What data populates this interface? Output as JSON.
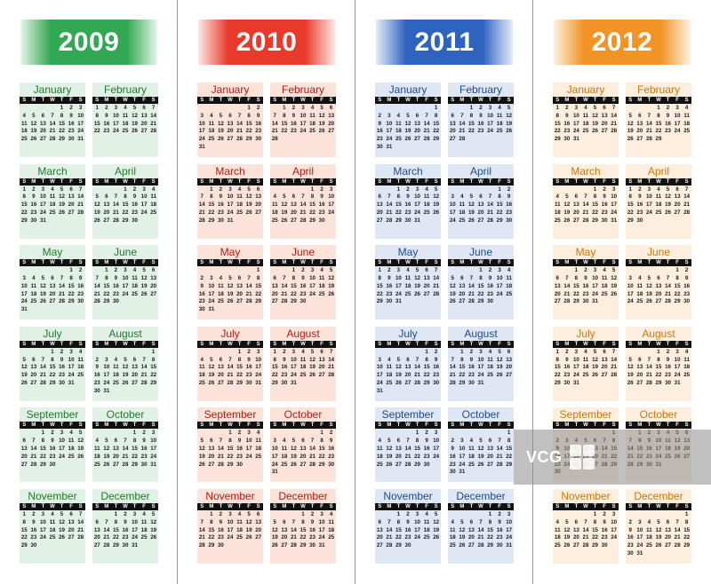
{
  "days_of_week": [
    "S",
    "M",
    "T",
    "W",
    "T",
    "F",
    "S"
  ],
  "watermark": {
    "logo_text": "VCG"
  },
  "years": [
    {
      "year": "2009",
      "theme": {
        "accent": "#1e8a3c",
        "band_dark": "#33a852",
        "band_light": "#e6f5ea",
        "panel": "#e2f1e5",
        "month_text": "#1e7a2e"
      },
      "months": [
        {
          "name": "January",
          "offset": 4,
          "days": 31
        },
        {
          "name": "February",
          "offset": 0,
          "days": 28
        },
        {
          "name": "March",
          "offset": 0,
          "days": 31
        },
        {
          "name": "April",
          "offset": 3,
          "days": 30
        },
        {
          "name": "May",
          "offset": 5,
          "days": 31
        },
        {
          "name": "June",
          "offset": 1,
          "days": 30
        },
        {
          "name": "July",
          "offset": 3,
          "days": 31
        },
        {
          "name": "August",
          "offset": 6,
          "days": 31
        },
        {
          "name": "September",
          "offset": 2,
          "days": 30
        },
        {
          "name": "October",
          "offset": 4,
          "days": 31
        },
        {
          "name": "November",
          "offset": 0,
          "days": 30
        },
        {
          "name": "December",
          "offset": 2,
          "days": 31
        }
      ]
    },
    {
      "year": "2010",
      "theme": {
        "accent": "#c0281c",
        "band_dark": "#e8392b",
        "band_light": "#fde8e4",
        "panel": "#fbe3da",
        "month_text": "#b01c14"
      },
      "months": [
        {
          "name": "January",
          "offset": 5,
          "days": 31
        },
        {
          "name": "February",
          "offset": 1,
          "days": 28
        },
        {
          "name": "March",
          "offset": 1,
          "days": 31
        },
        {
          "name": "April",
          "offset": 4,
          "days": 30
        },
        {
          "name": "May",
          "offset": 6,
          "days": 31
        },
        {
          "name": "June",
          "offset": 2,
          "days": 30
        },
        {
          "name": "July",
          "offset": 4,
          "days": 31
        },
        {
          "name": "August",
          "offset": 0,
          "days": 31
        },
        {
          "name": "September",
          "offset": 3,
          "days": 30
        },
        {
          "name": "October",
          "offset": 5,
          "days": 31
        },
        {
          "name": "November",
          "offset": 1,
          "days": 30
        },
        {
          "name": "December",
          "offset": 3,
          "days": 31
        }
      ]
    },
    {
      "year": "2011",
      "theme": {
        "accent": "#1f4e9a",
        "band_dark": "#2f63c0",
        "band_light": "#e4ecf9",
        "panel": "#dfe7f5",
        "month_text": "#1f4a8a"
      },
      "months": [
        {
          "name": "January",
          "offset": 6,
          "days": 31
        },
        {
          "name": "February",
          "offset": 2,
          "days": 28
        },
        {
          "name": "March",
          "offset": 2,
          "days": 31
        },
        {
          "name": "April",
          "offset": 5,
          "days": 30
        },
        {
          "name": "May",
          "offset": 0,
          "days": 31
        },
        {
          "name": "June",
          "offset": 3,
          "days": 30
        },
        {
          "name": "July",
          "offset": 5,
          "days": 31
        },
        {
          "name": "August",
          "offset": 1,
          "days": 31
        },
        {
          "name": "September",
          "offset": 4,
          "days": 30
        },
        {
          "name": "October",
          "offset": 6,
          "days": 31
        },
        {
          "name": "November",
          "offset": 2,
          "days": 30
        },
        {
          "name": "December",
          "offset": 4,
          "days": 31
        }
      ]
    },
    {
      "year": "2012",
      "theme": {
        "accent": "#e07b10",
        "band_dark": "#f19326",
        "band_light": "#fff1e0",
        "panel": "#fdeedd",
        "month_text": "#c8780c"
      },
      "months": [
        {
          "name": "January",
          "offset": 0,
          "days": 31
        },
        {
          "name": "February",
          "offset": 3,
          "days": 29
        },
        {
          "name": "March",
          "offset": 4,
          "days": 31
        },
        {
          "name": "April",
          "offset": 0,
          "days": 30
        },
        {
          "name": "May",
          "offset": 2,
          "days": 31
        },
        {
          "name": "June",
          "offset": 5,
          "days": 30
        },
        {
          "name": "July",
          "offset": 0,
          "days": 31
        },
        {
          "name": "August",
          "offset": 3,
          "days": 31
        },
        {
          "name": "September",
          "offset": 6,
          "days": 30
        },
        {
          "name": "October",
          "offset": 1,
          "days": 31
        },
        {
          "name": "November",
          "offset": 4,
          "days": 30
        },
        {
          "name": "December",
          "offset": 6,
          "days": 31
        }
      ]
    }
  ]
}
